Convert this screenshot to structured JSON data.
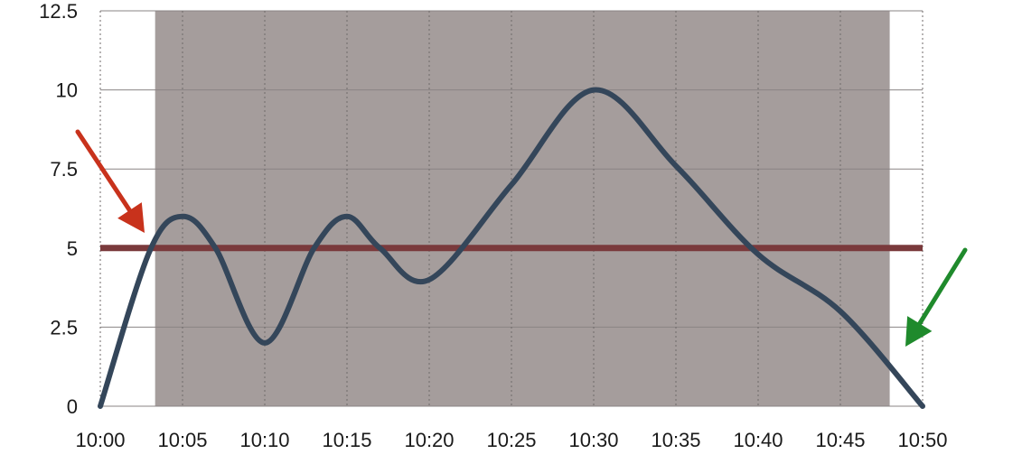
{
  "chart_data": {
    "type": "line",
    "x": [
      "10:00",
      "10:05",
      "10:10",
      "10:15",
      "10:20",
      "10:25",
      "10:30",
      "10:35",
      "10:40",
      "10:45",
      "10:50"
    ],
    "xlim": [
      0,
      50
    ],
    "ylim": [
      0,
      12.5
    ],
    "yticks": [
      0,
      2.5,
      5,
      7.5,
      10,
      12.5
    ],
    "y_tick_labels": [
      "0",
      "2.5",
      "5",
      "7.5",
      "10",
      "12.5"
    ],
    "x_tick_labels": [
      "10:00",
      "10:05",
      "10:10",
      "10:15",
      "10:20",
      "10:25",
      "10:30",
      "10:35",
      "10:40",
      "10:45",
      "10:50"
    ],
    "grid": {
      "horizontal": "solid",
      "vertical": "dotted"
    },
    "series": [
      {
        "points": [
          {
            "x": "10:00",
            "y": 0
          },
          {
            "x": "10:03",
            "y": 4.9
          },
          {
            "x": "10:05",
            "y": 6
          },
          {
            "x": "10:07",
            "y": 5
          },
          {
            "x": "10:10",
            "y": 2
          },
          {
            "x": "10:13",
            "y": 5
          },
          {
            "x": "10:15",
            "y": 6
          },
          {
            "x": "10:17",
            "y": 5
          },
          {
            "x": "10:20",
            "y": 4
          },
          {
            "x": "10:25",
            "y": 7
          },
          {
            "x": "10:30",
            "y": 10
          },
          {
            "x": "10:35",
            "y": 7.6
          },
          {
            "x": "10:40",
            "y": 4.8
          },
          {
            "x": "10:45",
            "y": 3
          },
          {
            "x": "10:50",
            "y": 0
          }
        ],
        "color": "#34465a"
      }
    ],
    "threshold": {
      "y": 5,
      "color": "#7a3a3c"
    },
    "shaded_region": {
      "x_start": "10:03:20",
      "x_end": "10:48",
      "color": "#a59d9c"
    },
    "annotations": [
      {
        "type": "arrow",
        "icon": "red-arrow-icon",
        "color": "#c8321c",
        "points_to": "10:03 (up-crossing of 5)"
      },
      {
        "type": "arrow",
        "icon": "green-arrow-icon",
        "color": "#1f8a2c",
        "points_to": "10:48 (end of shaded region)"
      }
    ]
  }
}
